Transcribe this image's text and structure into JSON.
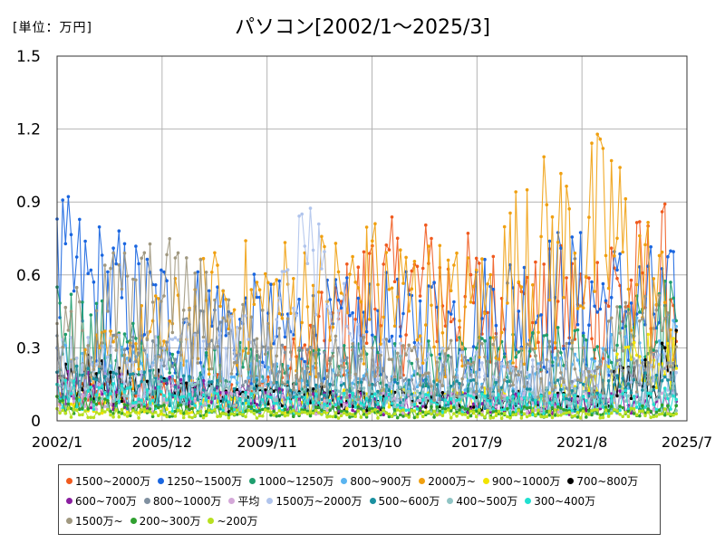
{
  "unit_label": "[単位：万円]",
  "title": "パソコン[2002/1～2025/3]",
  "chart_data": {
    "type": "line",
    "title": "パソコン[2002/1～2025/3]",
    "unit": "万円",
    "ylim": [
      0,
      1.5
    ],
    "y_ticks": [
      "0",
      "0.3",
      "0.6",
      "0.9",
      "1.2",
      "1.5"
    ],
    "x_ticks": [
      "2002/1",
      "2005/12",
      "2009/11",
      "2013/10",
      "2017/9",
      "2021/8",
      "2025/7"
    ],
    "grid": true,
    "legend_position": "bottom",
    "series": [
      {
        "name": "1500~2000万",
        "color": "#f05a1e",
        "keypoints": [
          [
            "2002/1",
            0.15
          ],
          [
            "2009/11",
            0.18
          ],
          [
            "2013/10",
            0.72
          ],
          [
            "2015/12",
            0.75
          ],
          [
            "2019/7",
            0.59
          ],
          [
            "2022/9",
            0.71
          ],
          [
            "2025/3",
            0.81
          ]
        ]
      },
      {
        "name": "1250~1500万",
        "color": "#1a66e0",
        "keypoints": [
          [
            "2002/1",
            0.83
          ],
          [
            "2005/12",
            0.62
          ],
          [
            "2008/1",
            0.55
          ],
          [
            "2011/1",
            0.5
          ],
          [
            "2015/12",
            0.55
          ],
          [
            "2020/10",
            0.71
          ],
          [
            "2025/3",
            0.62
          ]
        ]
      },
      {
        "name": "1000~1250万",
        "color": "#1e9e6e",
        "keypoints": [
          [
            "2002/1",
            0.55
          ],
          [
            "2005/12",
            0.3
          ],
          [
            "2009/11",
            0.28
          ],
          [
            "2013/10",
            0.3
          ],
          [
            "2017/9",
            0.3
          ],
          [
            "2021/8",
            0.35
          ],
          [
            "2025/3",
            0.56
          ]
        ]
      },
      {
        "name": "800~900万",
        "color": "#5ab4f0",
        "keypoints": [
          [
            "2002/1",
            0.3
          ],
          [
            "2005/12",
            0.25
          ],
          [
            "2009/11",
            0.22
          ],
          [
            "2013/10",
            0.2
          ],
          [
            "2017/9",
            0.2
          ],
          [
            "2021/8",
            0.25
          ],
          [
            "2025/3",
            0.5
          ]
        ]
      },
      {
        "name": "2000万~",
        "color": "#f0a010",
        "keypoints": [
          [
            "2002/1",
            0.2
          ],
          [
            "2008/1",
            0.64
          ],
          [
            "2013/10",
            0.74
          ],
          [
            "2017/9",
            0.62
          ],
          [
            "2019/8",
            0.95
          ],
          [
            "2022/9",
            1.07
          ],
          [
            "2025/3",
            0.55
          ]
        ]
      },
      {
        "name": "900~1000万",
        "color": "#f2e400",
        "keypoints": [
          [
            "2002/1",
            0.1
          ],
          [
            "2009/11",
            0.1
          ],
          [
            "2013/10",
            0.12
          ],
          [
            "2017/9",
            0.12
          ],
          [
            "2021/8",
            0.15
          ],
          [
            "2025/3",
            0.4
          ]
        ]
      },
      {
        "name": "700~800万",
        "color": "#000000",
        "keypoints": [
          [
            "2002/1",
            0.3
          ],
          [
            "2004/1",
            0.2
          ],
          [
            "2005/12",
            0.18
          ],
          [
            "2008/1",
            0.14
          ],
          [
            "2013/10",
            0.12
          ],
          [
            "2021/8",
            0.1
          ],
          [
            "2025/3",
            0.36
          ]
        ]
      },
      {
        "name": "600~700万",
        "color": "#8a1ea0",
        "keypoints": [
          [
            "2002/1",
            0.2
          ],
          [
            "2005/12",
            0.16
          ],
          [
            "2009/11",
            0.12
          ],
          [
            "2013/10",
            0.1
          ],
          [
            "2021/8",
            0.1
          ],
          [
            "2025/3",
            0.12
          ]
        ]
      },
      {
        "name": "800~1000万",
        "color": "#8090a0",
        "keypoints": [
          [
            "2002/1",
            0.35
          ],
          [
            "2005/12",
            0.3
          ],
          [
            "2007/6",
            0.45
          ],
          [
            "2009/11",
            0.3
          ],
          [
            "2013/10",
            0.25
          ],
          [
            "2021/8",
            0.2
          ],
          [
            "2025/3",
            0.3
          ]
        ]
      },
      {
        "name": "平均",
        "color": "#d4a8d8",
        "keypoints": [
          [
            "2002/1",
            0.15
          ],
          [
            "2005/12",
            0.13
          ],
          [
            "2009/11",
            0.11
          ],
          [
            "2013/10",
            0.1
          ],
          [
            "2021/8",
            0.1
          ],
          [
            "2025/3",
            0.12
          ]
        ]
      },
      {
        "name": "1500万~2000万",
        "color": "#b0c4ec",
        "keypoints": [
          [
            "2002/1",
            0.3
          ],
          [
            "2009/11",
            0.4
          ],
          [
            "2011/3",
            0.85
          ],
          [
            "2013/10",
            0.3
          ],
          [
            "2021/8",
            0.2
          ],
          [
            "2025/3",
            0.25
          ]
        ]
      },
      {
        "name": "500~600万",
        "color": "#1a90a0",
        "keypoints": [
          [
            "2002/1",
            0.2
          ],
          [
            "2005/12",
            0.18
          ],
          [
            "2009/11",
            0.15
          ],
          [
            "2013/10",
            0.15
          ],
          [
            "2021/8",
            0.15
          ],
          [
            "2025/3",
            0.2
          ]
        ]
      },
      {
        "name": "400~500万",
        "color": "#90c4c4",
        "keypoints": [
          [
            "2002/1",
            0.15
          ],
          [
            "2005/12",
            0.15
          ],
          [
            "2009/11",
            0.12
          ],
          [
            "2013/10",
            0.12
          ],
          [
            "2021/8",
            0.12
          ],
          [
            "2025/3",
            0.15
          ]
        ]
      },
      {
        "name": "300~400万",
        "color": "#20e0d0",
        "keypoints": [
          [
            "2002/1",
            0.15
          ],
          [
            "2005/12",
            0.12
          ],
          [
            "2009/11",
            0.1
          ],
          [
            "2013/10",
            0.1
          ],
          [
            "2021/8",
            0.1
          ],
          [
            "2025/3",
            0.12
          ]
        ]
      },
      {
        "name": "1500万~",
        "color": "#a09880",
        "keypoints": [
          [
            "2002/1",
            0.4
          ],
          [
            "2003/11",
            0.64
          ],
          [
            "2006/6",
            0.67
          ],
          [
            "2009/11",
            0.4
          ],
          [
            "2013/10",
            0.3
          ],
          [
            "2021/8",
            0.3
          ],
          [
            "2025/3",
            0.6
          ]
        ]
      },
      {
        "name": "200~300万",
        "color": "#30a030",
        "keypoints": [
          [
            "2002/1",
            0.1
          ],
          [
            "2005/12",
            0.06
          ],
          [
            "2009/11",
            0.05
          ],
          [
            "2013/10",
            0.05
          ],
          [
            "2021/8",
            0.05
          ],
          [
            "2025/3",
            0.06
          ]
        ]
      },
      {
        "name": "~200万",
        "color": "#b8e020",
        "keypoints": [
          [
            "2002/1",
            0.05
          ],
          [
            "2005/12",
            0.04
          ],
          [
            "2009/11",
            0.04
          ],
          [
            "2013/10",
            0.04
          ],
          [
            "2021/8",
            0.04
          ],
          [
            "2025/3",
            0.05
          ]
        ]
      }
    ]
  }
}
